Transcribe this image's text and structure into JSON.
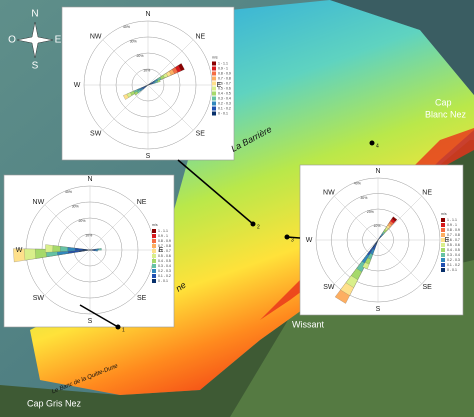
{
  "compass": {
    "n": "N",
    "e": "E",
    "s": "S",
    "w": "O"
  },
  "places": {
    "cap_blanc_nez": [
      "Cap",
      "Blanc Nez"
    ],
    "cap_gris_nez": "Cap Gris Nez",
    "wissant": "Wissant",
    "la_barriere": "La Barrière",
    "partial": "ne",
    "banc": "Le Banc de la Quitte-Dune"
  },
  "points": [
    "1",
    "2",
    "3",
    "4"
  ],
  "roses": [
    {
      "directions": [
        "N",
        "NE",
        "E",
        "SE",
        "S",
        "SW",
        "W",
        "NW"
      ],
      "rings": [
        "10%",
        "20%",
        "30%",
        "40%"
      ],
      "legend_title": "m/s",
      "legend": [
        "1 - 1.1",
        "0.9 - 1",
        "0.8 - 0.9",
        "0.7 - 0.8",
        "0.6 - 0.7",
        "0.5 - 0.6",
        "0.4 - 0.5",
        "0.3 - 0.4",
        "0.2 - 0.3",
        "0.1 - 0.2",
        "0 - 0.1"
      ]
    },
    {
      "directions": [
        "N",
        "NE",
        "E",
        "SE",
        "S",
        "SW",
        "W",
        "NW"
      ],
      "rings": [
        "10%",
        "20%",
        "30%",
        "40%"
      ],
      "legend_title": "m/s",
      "legend": [
        "1 - 1.1",
        "0.9 - 1",
        "0.8 - 0.9",
        "0.7 - 0.8",
        "0.6 - 0.7",
        "0.5 - 0.6",
        "0.4 - 0.5",
        "0.3 - 0.4",
        "0.2 - 0.3",
        "0.1 - 0.2",
        "0 - 0.1"
      ]
    },
    {
      "directions": [
        "N",
        "NE",
        "E",
        "SE",
        "S",
        "SW",
        "W",
        "NW"
      ],
      "rings": [
        "10%",
        "20%",
        "30%",
        "40%"
      ],
      "legend_title": "m/s",
      "legend": [
        "1 - 1.1",
        "0.9 - 1",
        "0.8 - 0.9",
        "0.7 - 0.8",
        "0.6 - 0.7",
        "0.5 - 0.6",
        "0.4 - 0.5",
        "0.3 - 0.4",
        "0.2 - 0.3",
        "0.1 - 0.2",
        "0 - 0.1"
      ]
    }
  ]
}
